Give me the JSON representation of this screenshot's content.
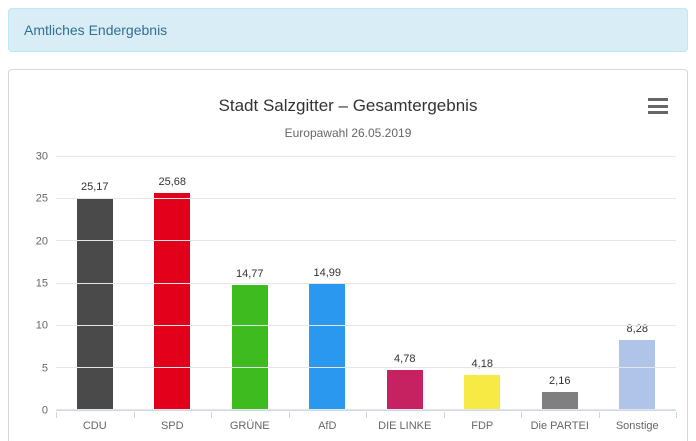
{
  "header": {
    "title": "Amtliches Endergebnis"
  },
  "chart_data": {
    "type": "bar",
    "title": "Stadt Salzgitter – Gesamtergebnis",
    "subtitle": "Europawahl 26.05.2019",
    "categories": [
      "CDU",
      "SPD",
      "GRÜNE",
      "AfD",
      "DIE LINKE",
      "FDP",
      "Die PARTEI",
      "Sonstige"
    ],
    "values": [
      25.17,
      25.68,
      14.77,
      14.99,
      4.78,
      4.18,
      2.16,
      8.28
    ],
    "value_labels": [
      "25,17",
      "25,68",
      "14,77",
      "14,99",
      "4,78",
      "4,18",
      "2,16",
      "8,28"
    ],
    "bar_colors": [
      "#4a4a4a",
      "#e2001a",
      "#3dbb1f",
      "#2b98f0",
      "#c62262",
      "#f7ea45",
      "#7f7f7f",
      "#b0c3e8"
    ],
    "xlabel": "",
    "ylabel": "",
    "ylim": [
      0,
      30
    ],
    "yticks": [
      0,
      5,
      10,
      15,
      20,
      25,
      30
    ],
    "grid": true,
    "legend": false,
    "menu_icon": "hamburger-menu-icon"
  },
  "theme": {
    "info_bg": "#d9edf7",
    "info_border": "#bce8f1",
    "info_text": "#31708f",
    "panel_border": "#d8d8d8",
    "title_color": "#333333",
    "subtitle_color": "#666666",
    "axis_label_color": "#666666",
    "gridline_color": "#e6e6e6",
    "axis_line_color": "#ccd6eb"
  }
}
